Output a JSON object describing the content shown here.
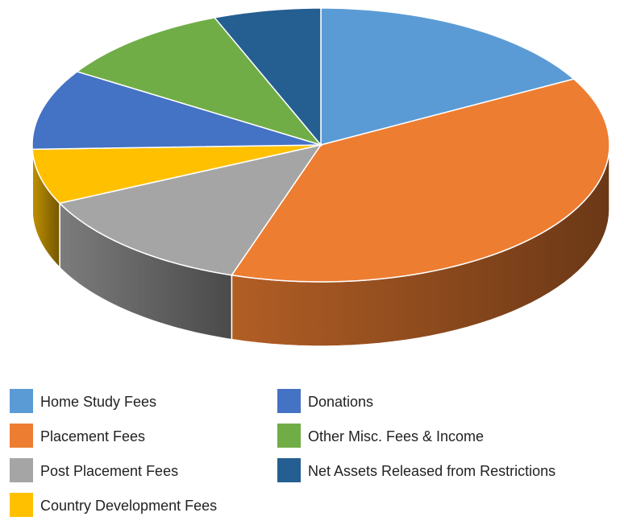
{
  "chart_data": {
    "type": "pie",
    "categories": [
      "Home Study Fees",
      "Placement Fees",
      "Post Placement Fees",
      "Country Development Fees",
      "Donations",
      "Other Misc. Fees & Income",
      "Net Assets Released from Restrictions"
    ],
    "values": [
      17,
      38,
      13,
      6.5,
      9.5,
      10,
      6
    ],
    "colors": [
      "#5b9bd5",
      "#ed7d31",
      "#a5a5a5",
      "#ffc000",
      "#4472c4",
      "#70ad47",
      "#255e91"
    ]
  }
}
